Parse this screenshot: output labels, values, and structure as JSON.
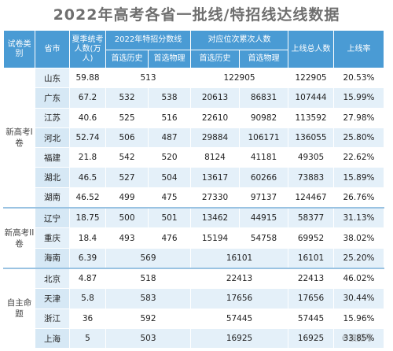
{
  "title": "2022年高考各省一批线/特招线达线数据",
  "header": {
    "category": "试卷类别",
    "province": "省市",
    "candidates": "夏季统考人数(万人)",
    "scoreline": "2022年特招分数线",
    "rank": "对应位次累次人数",
    "total": "上线总人数",
    "rate": "上线率",
    "history": "首选历史",
    "physics": "首选物理",
    "history2": "首选历史",
    "physics2": "首选物理"
  },
  "groups": [
    {
      "label": "新高考I卷"
    },
    {
      "label": "新高考II卷"
    },
    {
      "label": "自主命题"
    }
  ],
  "rows": [
    {
      "prov": "山东",
      "cand": "59.88",
      "s": "513",
      "r": "122905",
      "total": "122905",
      "rate": "20.53%"
    },
    {
      "prov": "广东",
      "cand": "67.2",
      "sh": "532",
      "sp": "538",
      "rh": "20613",
      "rp": "86831",
      "total": "107444",
      "rate": "15.99%"
    },
    {
      "prov": "江苏",
      "cand": "40.6",
      "sh": "525",
      "sp": "516",
      "rh": "22610",
      "rp": "90982",
      "total": "113592",
      "rate": "27.98%"
    },
    {
      "prov": "河北",
      "cand": "52.74",
      "sh": "506",
      "sp": "487",
      "rh": "29884",
      "rp": "106171",
      "total": "136055",
      "rate": "25.80%"
    },
    {
      "prov": "福建",
      "cand": "21.8",
      "sh": "542",
      "sp": "520",
      "rh": "8124",
      "rp": "41181",
      "total": "49305",
      "rate": "22.62%"
    },
    {
      "prov": "湖北",
      "cand": "46.5",
      "sh": "527",
      "sp": "504",
      "rh": "13617",
      "rp": "60266",
      "total": "73883",
      "rate": "15.89%"
    },
    {
      "prov": "湖南",
      "cand": "46.52",
      "sh": "499",
      "sp": "475",
      "rh": "27330",
      "rp": "97137",
      "total": "124467",
      "rate": "26.76%"
    },
    {
      "prov": "辽宁",
      "cand": "18.75",
      "sh": "500",
      "sp": "501",
      "rh": "13462",
      "rp": "44915",
      "total": "58377",
      "rate": "31.13%"
    },
    {
      "prov": "重庆",
      "cand": "18.4",
      "sh": "493",
      "sp": "476",
      "rh": "15194",
      "rp": "54758",
      "total": "69952",
      "rate": "38.02%"
    },
    {
      "prov": "海南",
      "cand": "6.39",
      "s": "569",
      "r": "16101",
      "total": "16101",
      "rate": "25.20%"
    },
    {
      "prov": "北京",
      "cand": "4.87",
      "s": "518",
      "r": "22413",
      "total": "22413",
      "rate": "46.02%"
    },
    {
      "prov": "天津",
      "cand": "5.8",
      "s": "583",
      "r": "17656",
      "total": "17656",
      "rate": "30.44%"
    },
    {
      "prov": "浙江",
      "cand": "36",
      "s": "592",
      "r": "57445",
      "total": "57445",
      "rate": "15.96%"
    },
    {
      "prov": "上海",
      "cand": "5",
      "s": "503",
      "r": "16925",
      "total": "16925",
      "rate": "33.85%"
    }
  ],
  "watermark": "©搜狐号"
}
